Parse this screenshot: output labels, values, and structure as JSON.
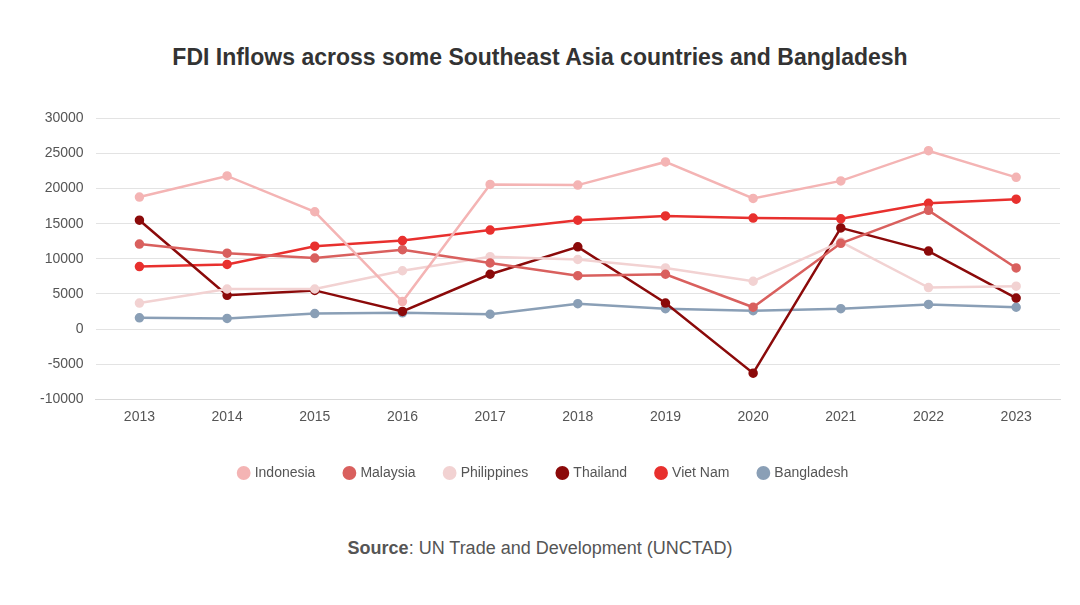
{
  "chart_data": {
    "type": "line",
    "title": "FDI Inflows across some Southeast Asia countries and Bangladesh",
    "source": {
      "label": "Source",
      "text": ": UN Trade and Development (UNCTAD)"
    },
    "categories": [
      "2013",
      "2014",
      "2015",
      "2016",
      "2017",
      "2018",
      "2019",
      "2020",
      "2021",
      "2022",
      "2023"
    ],
    "series": [
      {
        "name": "Indonesia",
        "color": "#f4b4b4",
        "marker": "circle",
        "values": [
          18800,
          21800,
          16700,
          3900,
          20600,
          20500,
          23800,
          18600,
          21100,
          25400,
          21600
        ]
      },
      {
        "name": "Malaysia",
        "color": "#d9605e",
        "marker": "circle",
        "values": [
          12100,
          10800,
          10100,
          11300,
          9400,
          7600,
          7800,
          3100,
          12200,
          16900,
          8700
        ]
      },
      {
        "name": "Philippines",
        "color": "#f2d2d2",
        "marker": "circle",
        "values": [
          3700,
          5700,
          5700,
          8300,
          10300,
          9900,
          8700,
          6800,
          12400,
          5900,
          6100
        ]
      },
      {
        "name": "Thailand",
        "color": "#8b0a0a",
        "marker": "circle",
        "values": [
          15500,
          4800,
          5500,
          2500,
          7800,
          11700,
          3700,
          -6300,
          14400,
          11100,
          4400
        ]
      },
      {
        "name": "Viet Nam",
        "color": "#e8302e",
        "marker": "circle",
        "values": [
          8900,
          9200,
          11800,
          12600,
          14100,
          15500,
          16100,
          15800,
          15700,
          17900,
          18500
        ]
      },
      {
        "name": "Bangladesh",
        "color": "#8a9fb6",
        "marker": "circle",
        "values": [
          1600,
          1500,
          2200,
          2300,
          2100,
          3600,
          2900,
          2600,
          2900,
          3500,
          3100
        ]
      }
    ],
    "ylim": [
      -10000,
      30000
    ],
    "yticks": [
      -10000,
      -5000,
      0,
      5000,
      10000,
      15000,
      20000,
      25000,
      30000
    ],
    "grid": true,
    "legend": "bottom"
  }
}
